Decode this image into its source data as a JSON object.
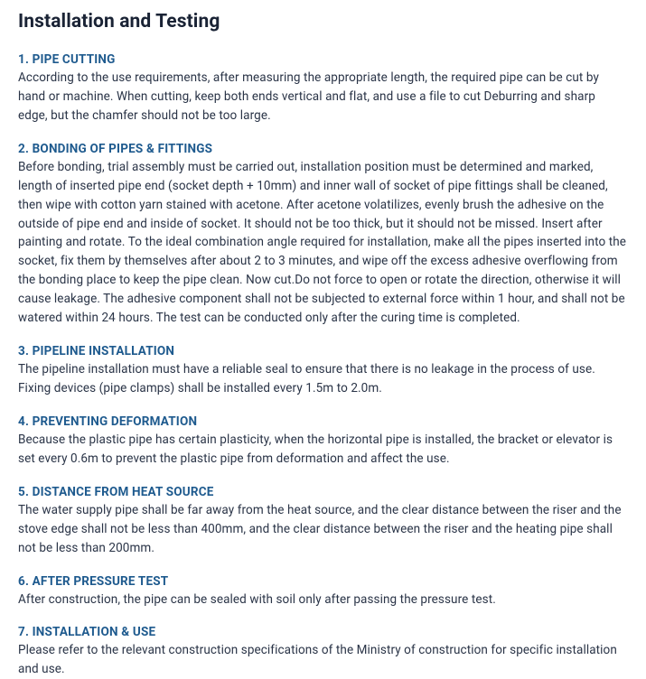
{
  "title": "Installation and Testing",
  "title_color": "#1a2335",
  "title_fontsize": 21,
  "heading_color": "#1e5a8e",
  "heading_fontsize": 13.5,
  "body_color": "#2a3447",
  "body_fontsize": 13.5,
  "background_color": "#ffffff",
  "sections": [
    {
      "heading": "1. PIPE CUTTING",
      "body": "According to the use requirements, after measuring the appropriate length, the required pipe can be cut by hand or machine. When cutting, keep both ends vertical and flat, and use a file to cut Deburring and sharp edge, but the chamfer should not be too large."
    },
    {
      "heading": "2. BONDING OF PIPES & FITTINGS",
      "body": "Before bonding, trial assembly must be carried out, installation position must be determined and marked, length of inserted pipe end (socket depth + 10mm) and inner wall of socket of pipe fittings shall be cleaned, then wipe with cotton yarn stained with acetone. After acetone volatilizes, evenly brush the adhesive on the outside of pipe end and inside of socket. It should not be too thick, but it should not be missed. Insert after painting and rotate. To the ideal combination angle required for installation, make all the pipes inserted into the socket, fix them by themselves after about 2 to 3 minutes, and wipe off the excess adhesive overflowing from the bonding place to keep the pipe clean. Now cut.Do not force to open or rotate the direction, otherwise it will cause leakage. The adhesive component shall not be subjected to external force within 1 hour, and shall not be watered within 24 hours. The test can be conducted only after the curing time is completed."
    },
    {
      "heading": "3. PIPELINE INSTALLATION",
      "body": "The pipeline installation must have a reliable seal to ensure that there is no leakage in the process of use. Fixing devices (pipe clamps) shall be installed every 1.5m to 2.0m."
    },
    {
      "heading": "4. PREVENTING DEFORMATION",
      "body": "Because the plastic pipe has certain plasticity, when the horizontal pipe is installed, the bracket or elevator is set every 0.6m to prevent the plastic pipe from deformation and affect the use."
    },
    {
      "heading": "5. DISTANCE FROM HEAT SOURCE",
      "body": "The water supply pipe shall be far away from the heat source, and the clear distance between the riser and the stove edge shall not be less than 400mm, and the clear distance between the riser and the heating pipe shall not be less than 200mm."
    },
    {
      "heading": "6. AFTER PRESSURE TEST",
      "body": "After construction, the pipe can be sealed with soil only after passing the pressure test."
    },
    {
      "heading": "7. INSTALLATION & USE",
      "body": "Please refer to the relevant construction specifications of the Ministry of construction for specific installation and use."
    }
  ]
}
